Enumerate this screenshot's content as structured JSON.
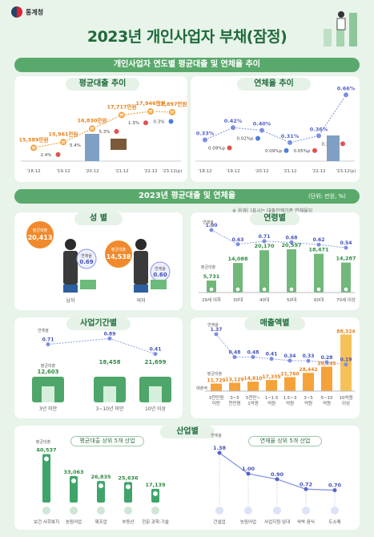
{
  "header": {
    "org": "통계청",
    "title": "2023년 개인사업자 부채(잠정)"
  },
  "sec1": {
    "banner": "개인사업자 연도별 평균대출 및 연체율 추이",
    "left_title": "평균대출 추이",
    "right_title": "연체율 추이"
  },
  "sec2": {
    "banner": "2023년 평균대출 및 연체율",
    "unit": "(단위: 만원, %)",
    "note": "※ 음영(   )표시는 대출잔액기준 연체율임"
  },
  "p_gender": {
    "title": "성 별"
  },
  "p_age": {
    "title": "연령별"
  },
  "p_period": {
    "title": "사업기간별"
  },
  "p_sales": {
    "title": "매출액별"
  },
  "p_industry": {
    "title": "산업별",
    "sub_left": "평균대출 상위 5개 산업",
    "sub_right": "연체율 상위 5개 산업"
  },
  "chart_data": [
    {
      "type": "line",
      "id": "avg_loan_trend",
      "categories": [
        "'18.12",
        "'19.12",
        "'20.12",
        "'21.12",
        "'22.12",
        "'23.12(p)"
      ],
      "series": [
        {
          "values": [
            15589,
            15961,
            16830,
            17717,
            17946,
            17897
          ]
        }
      ],
      "value_labels": [
        "15,589만원",
        "15,961만원",
        "16,830만원",
        "17,717만원",
        "17,946만원",
        "17,897만원"
      ],
      "changes": [
        "2.4%",
        "5.4%",
        "5.3%",
        "1.3%",
        "0.3%"
      ],
      "change_dir": [
        "up",
        "up",
        "up",
        "up",
        "down"
      ]
    },
    {
      "type": "line",
      "id": "delinq_trend",
      "categories": [
        "'18.12",
        "'19.12",
        "'20.12",
        "'21.12",
        "'22.12",
        "'23.12(p)"
      ],
      "series": [
        {
          "values": [
            0.33,
            0.42,
            0.4,
            0.31,
            0.36,
            0.66
          ]
        }
      ],
      "value_labels": [
        "0.33%",
        "0.42%",
        "0.40%",
        "0.31%",
        "0.36%",
        "0.66%"
      ],
      "changes": [
        "0.09%p",
        "0.02%p",
        "0.09%p",
        "0.05%p",
        "0.30%p"
      ],
      "change_dir": [
        "up",
        "down",
        "down",
        "up",
        "up"
      ]
    },
    {
      "type": "bar",
      "id": "gender",
      "categories": [
        "남자",
        "여자"
      ],
      "loan_label": "평균대출",
      "delinq_label": "연체율",
      "loan": [
        20413,
        14538
      ],
      "loan_labels": [
        "20,413",
        "14,538"
      ],
      "delinq": [
        0.69,
        0.6
      ]
    },
    {
      "type": "bar",
      "id": "age",
      "categories": [
        "29세 이하",
        "30대",
        "40대",
        "50대",
        "60대",
        "70세 이상"
      ],
      "loan_label": "평균대출",
      "delinq_label": "연체율",
      "loan": [
        5731,
        14088,
        20170,
        20597,
        18471,
        14287
      ],
      "loan_labels": [
        "5,731",
        "14,088",
        "20,170",
        "20,597",
        "18,471",
        "14,287"
      ],
      "delinq": [
        1.0,
        0.63,
        0.71,
        0.68,
        0.62,
        0.54
      ],
      "delinq_labels": [
        "1.00",
        "0.63",
        "0.71",
        "0.68",
        "0.62",
        "0.54"
      ]
    },
    {
      "type": "bar",
      "id": "period",
      "categories": [
        "3년 미만",
        "3~10년 미만",
        "10년 이상"
      ],
      "loan_label": "평균대출",
      "delinq_label": "연체율",
      "loan": [
        12603,
        18458,
        21699
      ],
      "loan_labels": [
        "12,603",
        "18,458",
        "21,699"
      ],
      "delinq": [
        0.71,
        0.89,
        0.41
      ],
      "delinq_labels": [
        "0.71",
        "0.89",
        "0.41"
      ]
    },
    {
      "type": "bar",
      "id": "sales",
      "categories": [
        "3천만원 미만",
        "3~5 천만원",
        "5천만~ 1억원",
        "1~1.5 억원",
        "1.5~3 억원",
        "3~5 억원",
        "5~10 억원",
        "10억원 이상"
      ],
      "loan_label": "평균대출",
      "delinq_label": "연체율",
      "axis_label": "매출액",
      "loan": [
        11729,
        13129,
        14810,
        17335,
        21760,
        28442,
        38145,
        88324
      ],
      "loan_labels": [
        "11,729",
        "13,129",
        "14,810",
        "17,335",
        "21,760",
        "28,442",
        "38,145",
        "88,324"
      ],
      "delinq": [
        1.37,
        0.48,
        0.48,
        0.41,
        0.34,
        0.33,
        0.28,
        0.19
      ],
      "delinq_labels": [
        "1.37",
        "0.48",
        "0.48",
        "0.41",
        "0.34",
        "0.33",
        "0.28",
        "0.19"
      ]
    },
    {
      "type": "bar",
      "id": "industry_loan",
      "categories": [
        "보건·사회복지",
        "농림어업",
        "제조업",
        "부동산",
        "전문·과학·기술"
      ],
      "values": [
        60537,
        33063,
        26835,
        25636,
        17139
      ],
      "labels": [
        "60,537",
        "33,063",
        "26,835",
        "25,636",
        "17,139"
      ],
      "loan_label": "평균대출"
    },
    {
      "type": "line",
      "id": "industry_delinq",
      "categories": [
        "건설업",
        "농림어업",
        "사업지원·임대",
        "숙박·음식",
        "도소매"
      ],
      "values": [
        1.38,
        1.0,
        0.9,
        0.72,
        0.7
      ],
      "labels": [
        "1.38",
        "1.00",
        "0.90",
        "0.72",
        "0.70"
      ],
      "delinq_label": "연체율"
    }
  ]
}
